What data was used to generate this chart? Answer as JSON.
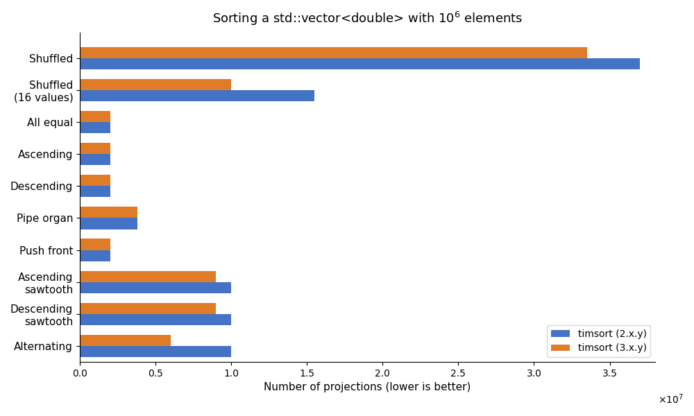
{
  "categories": [
    "Shuffled",
    "Shuffled\n(16 values)",
    "All equal",
    "Ascending",
    "Descending",
    "Pipe organ",
    "Push front",
    "Ascending\nsawtooth",
    "Descending\nsawtooth",
    "Alternating"
  ],
  "timsort2": [
    37000000,
    15500000,
    2000000,
    2000000,
    2000000,
    3800000,
    2000000,
    10000000,
    10000000,
    10000000
  ],
  "timsort3": [
    33500000,
    10000000,
    2000000,
    2000000,
    2000000,
    3800000,
    2000000,
    9000000,
    9000000,
    6000000
  ],
  "color2": "#4472c4",
  "color3": "#e07b28",
  "title": "Sorting a std::vector<double> with 10$^6$ elements",
  "xlabel": "Number of projections (lower is better)",
  "legend_labels": [
    "timsort (2.x.y)",
    "timsort (3.x.y)"
  ],
  "xlim": [
    0,
    38000000.0
  ],
  "bar_height": 0.35,
  "figsize": [
    10,
    6
  ],
  "dpi": 100,
  "xticks": [
    0,
    5000000,
    10000000,
    15000000,
    20000000,
    25000000,
    30000000,
    35000000
  ]
}
